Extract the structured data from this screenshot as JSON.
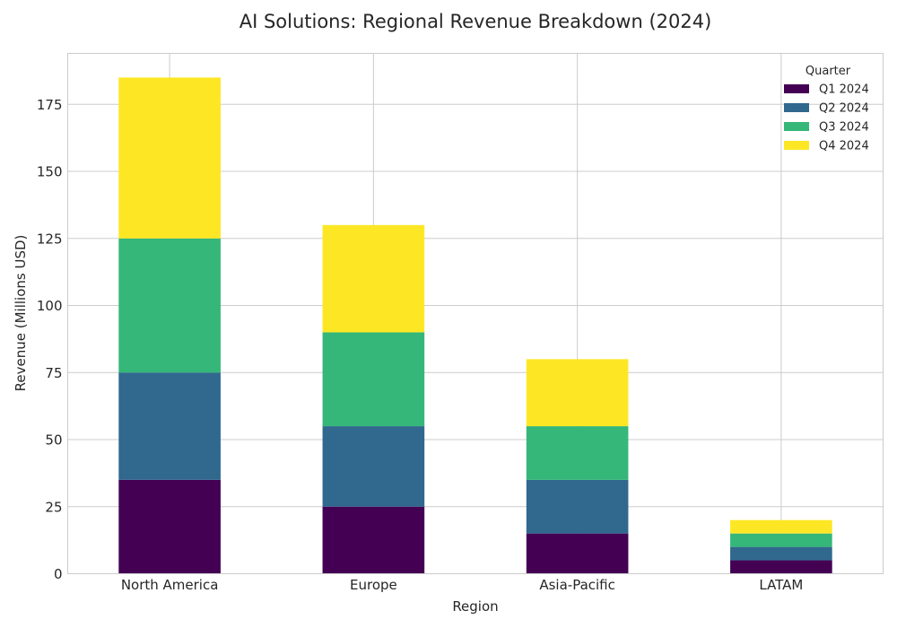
{
  "chart_data": {
    "type": "bar",
    "stacked": true,
    "title": "AI Solutions: Regional Revenue Breakdown (2024)",
    "xlabel": "Region",
    "ylabel": "Revenue (Millions USD)",
    "categories": [
      "North America",
      "Europe",
      "Asia-Pacific",
      "LATAM"
    ],
    "series": [
      {
        "name": "Q1 2024",
        "color": "#440154",
        "values": [
          35,
          25,
          15,
          5
        ]
      },
      {
        "name": "Q2 2024",
        "color": "#31688e",
        "values": [
          40,
          30,
          20,
          5
        ]
      },
      {
        "name": "Q3 2024",
        "color": "#35b779",
        "values": [
          50,
          35,
          20,
          5
        ]
      },
      {
        "name": "Q4 2024",
        "color": "#fde725",
        "values": [
          60,
          40,
          25,
          5
        ]
      }
    ],
    "ylim": [
      0,
      194
    ],
    "yticks": [
      0,
      25,
      50,
      75,
      100,
      125,
      150,
      175
    ],
    "grid": true,
    "legend": {
      "title": "Quarter",
      "placement": "top-right"
    }
  }
}
